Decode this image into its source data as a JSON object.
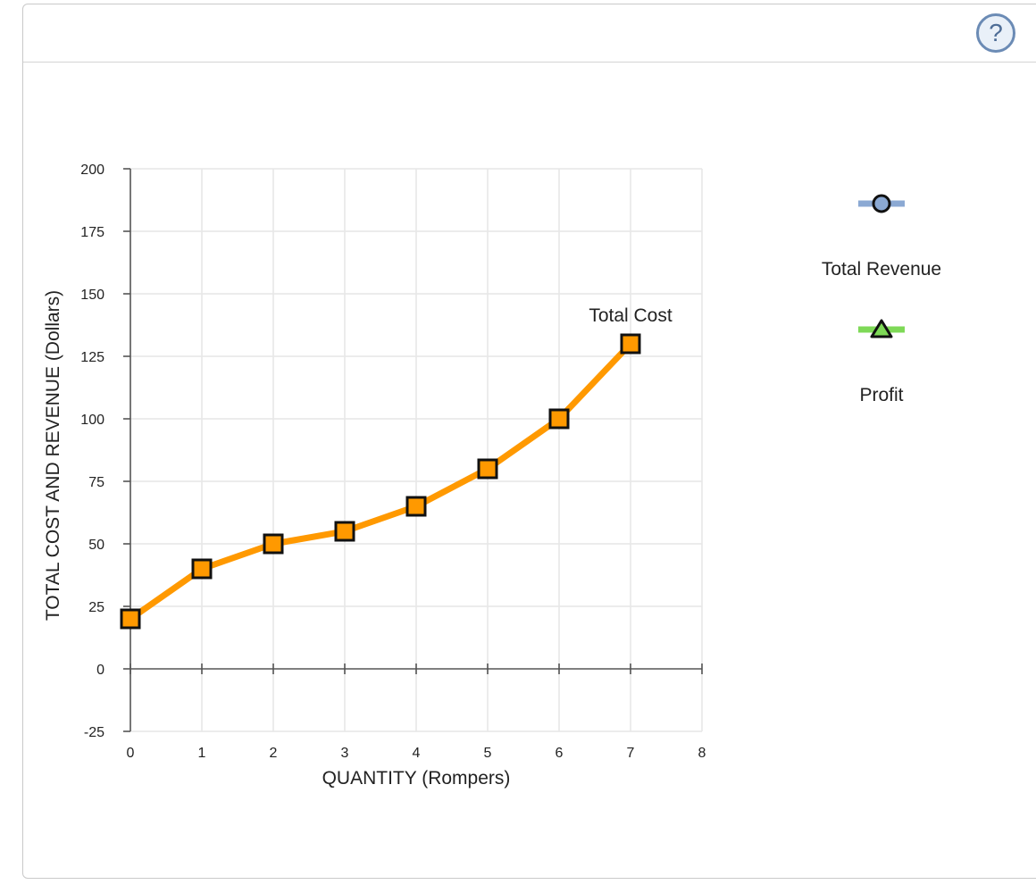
{
  "help": {
    "label": "?"
  },
  "chart_data": {
    "type": "line",
    "xlabel": "QUANTITY (Rompers)",
    "ylabel": "TOTAL COST AND REVENUE (Dollars)",
    "xlim": [
      0,
      8
    ],
    "ylim": [
      -25,
      200
    ],
    "x_ticks": [
      0,
      1,
      2,
      3,
      4,
      5,
      6,
      7,
      8
    ],
    "y_ticks": [
      -25,
      0,
      25,
      50,
      75,
      100,
      125,
      150,
      175,
      200
    ],
    "grid": true,
    "series": [
      {
        "name": "Total Cost",
        "color": "#ff9900",
        "marker": "square",
        "x": [
          0,
          1,
          2,
          3,
          4,
          5,
          6,
          7
        ],
        "y": [
          20,
          40,
          50,
          55,
          65,
          80,
          100,
          130
        ]
      }
    ],
    "legend_position": "right",
    "legend": [
      {
        "name": "Total Revenue",
        "color": "#8ba9d3",
        "marker": "circle"
      },
      {
        "name": "Profit",
        "color": "#7ed957",
        "marker": "triangle"
      }
    ]
  }
}
